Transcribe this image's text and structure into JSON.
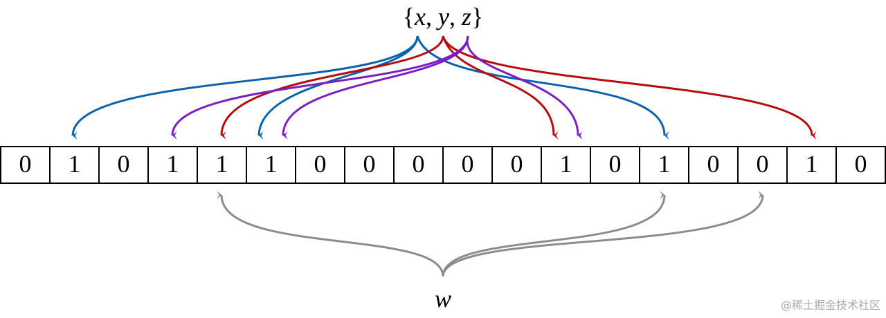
{
  "set": {
    "open": "{",
    "items": [
      "x",
      "y",
      "z"
    ],
    "separator": ", ",
    "close": "}"
  },
  "bits": [
    "0",
    "1",
    "0",
    "1",
    "1",
    "1",
    "0",
    "0",
    "0",
    "0",
    "0",
    "1",
    "0",
    "1",
    "0",
    "0",
    "1",
    "0"
  ],
  "query": "w",
  "watermark": "@稀土掘金技术社区"
}
